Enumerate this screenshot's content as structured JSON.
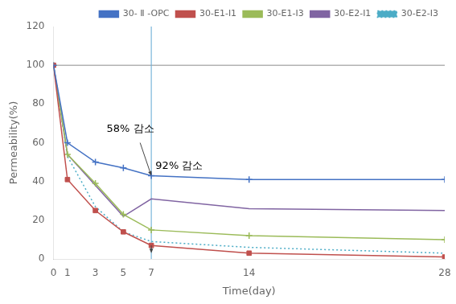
{
  "chart_data": {
    "type": "line",
    "x": [
      0,
      1,
      3,
      5,
      7,
      14,
      28
    ],
    "series": [
      {
        "name": "30- Ⅱ -OPC",
        "color": "#4472c4",
        "marker": "cross",
        "line_style": "solid",
        "values": [
          100,
          60,
          50,
          47,
          43,
          41,
          41
        ]
      },
      {
        "name": "30-E1-I1",
        "color": "#c0504d",
        "marker": "square",
        "line_style": "solid",
        "values": [
          100,
          41,
          25,
          14,
          7,
          3,
          1
        ]
      },
      {
        "name": "30-E1-I3",
        "color": "#9bbb59",
        "marker": "cross",
        "line_style": "solid",
        "values": [
          100,
          54,
          39,
          23,
          15,
          12,
          10
        ]
      },
      {
        "name": "30-E2-I1",
        "color": "#8064a2",
        "marker": "none",
        "line_style": "solid",
        "values": [
          100,
          54,
          38,
          22,
          31,
          26,
          25
        ]
      },
      {
        "name": "30-E2-I3",
        "color": "#4bacc6",
        "marker": "none",
        "line_style": "dotted",
        "values": [
          100,
          53,
          27,
          14,
          9,
          6,
          3
        ]
      }
    ],
    "x_label": "Time(day)",
    "y_label": "Permeability(%)",
    "xlim": [
      0,
      28
    ],
    "ylim": [
      0,
      120
    ],
    "xticks": [
      0,
      1,
      3,
      5,
      7,
      14,
      28
    ],
    "yticks": [
      0,
      20,
      40,
      60,
      80,
      100,
      120
    ],
    "hline_y": 100,
    "vline_x": 7,
    "annotations": [
      {
        "text": "58% 감소",
        "x": 5.5,
        "y": 67
      },
      {
        "text": "92% 감소",
        "x": 7.3,
        "y": 48
      }
    ],
    "arrows": [
      {
        "from": [
          7,
          7
        ],
        "to": [
          7,
          3
        ]
      },
      {
        "from": [
          6.2,
          60
        ],
        "to": [
          7,
          43
        ]
      }
    ],
    "grid": false,
    "legend": "upper right"
  }
}
